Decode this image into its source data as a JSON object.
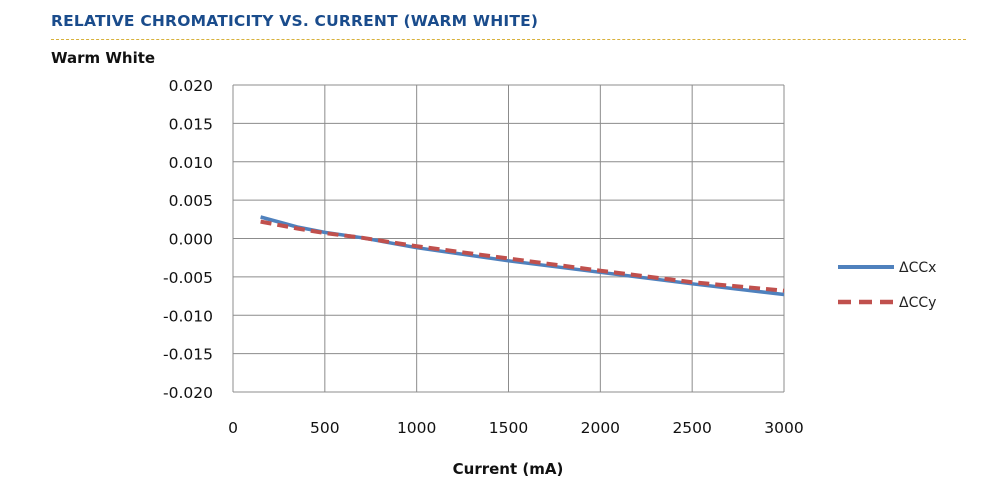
{
  "header": {
    "title": "RELATIVE CHROMATICITY VS. CURRENT (WARM WHITE)",
    "subtitle": "Warm White"
  },
  "chart_data": {
    "type": "line",
    "title": "Warm White",
    "xlabel": "Current (mA)",
    "ylabel": "",
    "xlim": [
      0,
      3000
    ],
    "ylim": [
      -0.02,
      0.02
    ],
    "xticks": [
      0,
      500,
      1000,
      1500,
      2000,
      2500,
      3000
    ],
    "yticks": [
      0.02,
      0.015,
      0.01,
      0.005,
      0.0,
      -0.005,
      -0.01,
      -0.015,
      -0.02
    ],
    "ytick_labels": [
      "0.020",
      "0.015",
      "0.010",
      "0.005",
      "0.000",
      "-0.005",
      "-0.010",
      "-0.015",
      "-0.020"
    ],
    "xtick_labels": [
      "0",
      "500",
      "1000",
      "1500",
      "2000",
      "2500",
      "3000"
    ],
    "grid": true,
    "legend_position": "right",
    "series": [
      {
        "name": "ΔCCx",
        "color": "#4f81bd",
        "style": "solid",
        "x": [
          150,
          350,
          500,
          700,
          1000,
          1500,
          2000,
          2500,
          3000
        ],
        "y": [
          0.0028,
          0.0015,
          0.0008,
          0.0001,
          -0.0012,
          -0.0029,
          -0.0044,
          -0.0059,
          -0.0073
        ]
      },
      {
        "name": "ΔCCy",
        "color": "#c0504d",
        "style": "dashed",
        "x": [
          150,
          350,
          500,
          700,
          1000,
          1500,
          2000,
          2500,
          3000
        ],
        "y": [
          0.0022,
          0.0013,
          0.0007,
          0.0001,
          -0.001,
          -0.0026,
          -0.0042,
          -0.0057,
          -0.0068
        ]
      }
    ]
  }
}
